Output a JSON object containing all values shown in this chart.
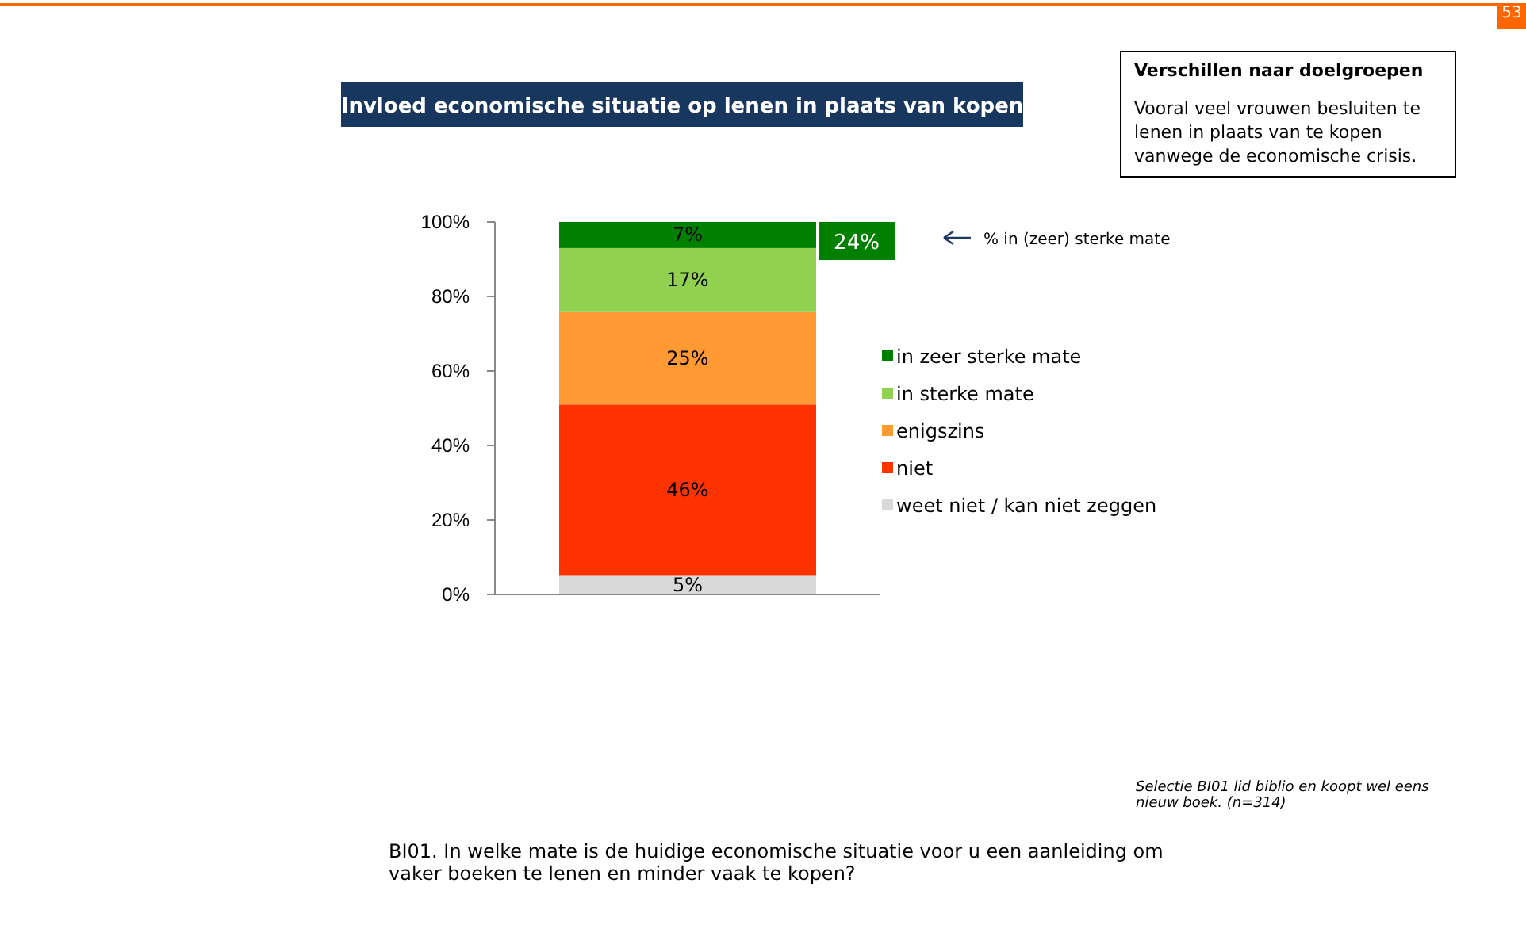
{
  "chart_data": {
    "type": "bar",
    "stacked": true,
    "title": "Invloed economische situatie op lenen in plaats van kopen",
    "categories": [
      null
    ],
    "series": [
      {
        "name": "weet niet / kan niet zeggen",
        "color": "#d9d9d9",
        "values": [
          5
        ],
        "value_labels": [
          "5%"
        ]
      },
      {
        "name": "niet",
        "color": "#ff3300",
        "values": [
          46
        ],
        "value_labels": [
          "46%"
        ]
      },
      {
        "name": "enigszins",
        "color": "#ff9933",
        "values": [
          25
        ],
        "value_labels": [
          "25%"
        ]
      },
      {
        "name": "in sterke mate",
        "color": "#92d050",
        "values": [
          17
        ],
        "value_labels": [
          "17%"
        ]
      },
      {
        "name": "in zeer sterke mate",
        "color": "#008000",
        "values": [
          7
        ],
        "value_labels": [
          "7%"
        ]
      }
    ],
    "ylim": [
      0,
      100
    ],
    "yticks": [
      {
        "value": 0,
        "label": "0%"
      },
      {
        "value": 20,
        "label": "20%"
      },
      {
        "value": 40,
        "label": "40%"
      },
      {
        "value": 60,
        "label": "60%"
      },
      {
        "value": 80,
        "label": "80%"
      },
      {
        "value": 100,
        "label": "100%"
      }
    ],
    "legend": "right",
    "annotations": [
      "24%",
      "% in (zeer) sterke mate",
      "Verschillen naar doelgroepen",
      "Vooral veel vrouwen besluiten te lenen in plaats van te kopen vanwege de economische crisis.",
      "Selectie BI01 lid biblio en koopt wel eens nieuw boek. (n=314)",
      "BI01. In welke mate is de huidige economische situatie voor u een aanleiding om vaker boeken te lenen en minder vaak te kopen?",
      "53"
    ]
  }
}
